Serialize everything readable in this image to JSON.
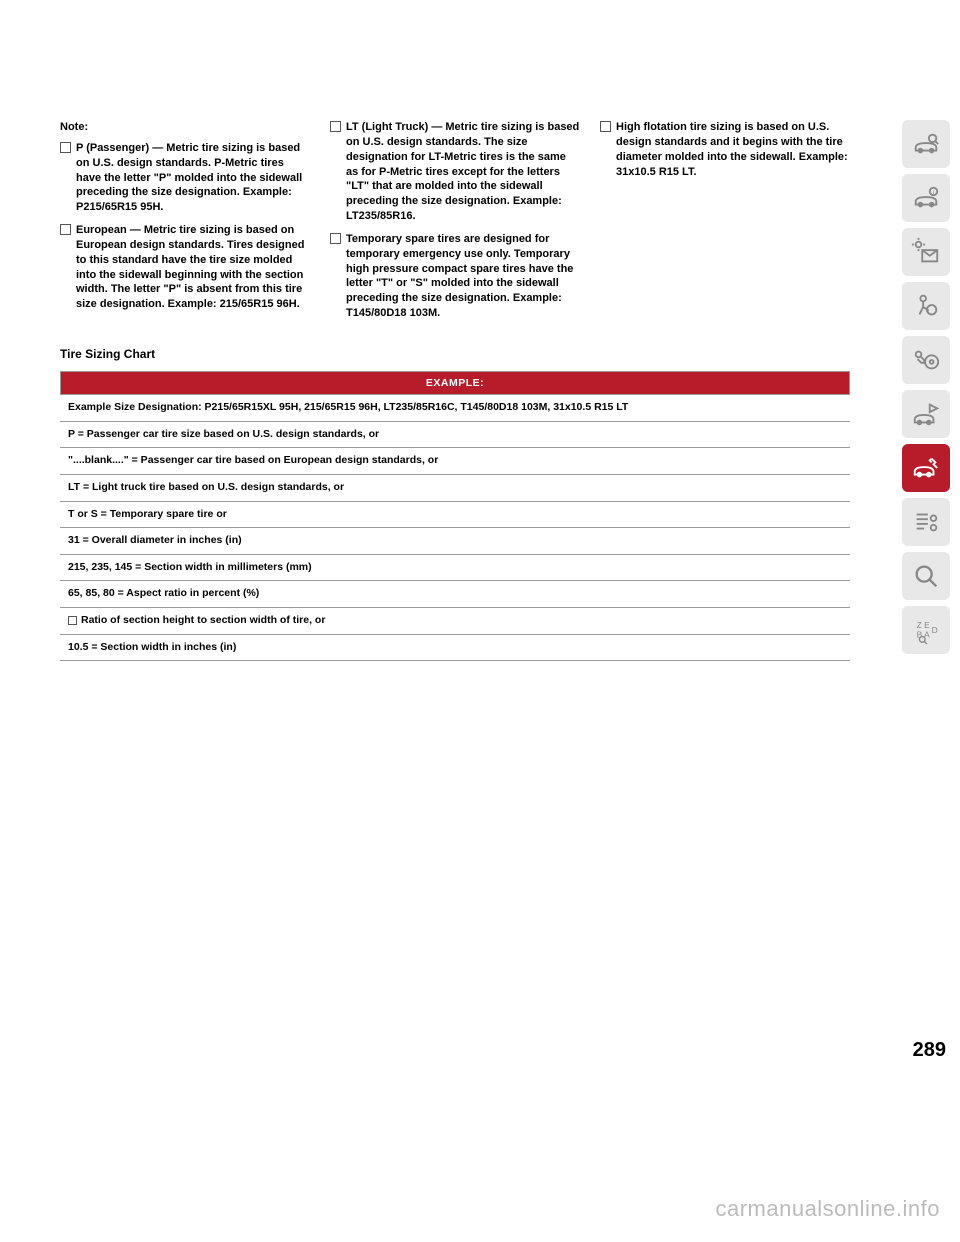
{
  "note_label": "Note:",
  "col1": {
    "b1": "P (Passenger) — Metric tire sizing is based on U.S. design standards. P-Metric tires have the letter \"P\" molded into the sidewall preceding the size designation. Example: P215/65R15 95H.",
    "b2": "European — Metric tire sizing is based on European design standards. Tires designed to this standard have the tire size molded into the sidewall beginning with the section width. The letter \"P\" is absent from this tire size designation. Example: 215/65R15 96H."
  },
  "col2": {
    "b1": "LT (Light Truck) — Metric tire sizing is based on U.S. design standards. The size designation for LT-Metric tires is the same as for P-Metric tires except for the letters \"LT\" that are molded into the sidewall preceding the size designation. Example: LT235/85R16.",
    "b2": "Temporary spare tires are designed for temporary emergency use only. Temporary high pressure compact spare tires have the letter \"T\" or \"S\" molded into the sidewall preceding the size designation. Example: T145/80D18 103M."
  },
  "col3": {
    "b1": "High flotation tire sizing is based on U.S. design standards and it begins with the tire diameter molded into the sidewall. Example: 31x10.5 R15 LT."
  },
  "section_title": "Tire Sizing Chart",
  "chart": {
    "header": "EXAMPLE:",
    "rows": [
      "Example Size Designation: P215/65R15XL 95H, 215/65R15 96H, LT235/85R16C, T145/80D18 103M, 31x10.5 R15 LT",
      "P = Passenger car tire size based on U.S. design standards, or",
      "\"....blank....\" = Passenger car tire based on European design standards, or",
      "LT = Light truck tire based on U.S. design standards, or",
      "T or S = Temporary spare tire or",
      "31 = Overall diameter in inches (in)",
      "215, 235, 145 = Section width in millimeters (mm)",
      "65, 85, 80 = Aspect ratio in percent (%)",
      "Ratio of section height to section width of tire, or",
      "10.5 = Section width in inches (in)"
    ],
    "bullet_row_index": 8
  },
  "page_number": "289",
  "watermark": "carmanualsonline.info",
  "icons": [
    {
      "name": "car-search-icon",
      "active": false
    },
    {
      "name": "car-info-icon",
      "active": false
    },
    {
      "name": "mail-sun-icon",
      "active": false
    },
    {
      "name": "airbag-icon",
      "active": false
    },
    {
      "name": "key-wheel-icon",
      "active": false
    },
    {
      "name": "car-flag-icon",
      "active": false
    },
    {
      "name": "car-wrench-icon",
      "active": true
    },
    {
      "name": "list-gear-icon",
      "active": false
    },
    {
      "name": "magnifier-icon",
      "active": false
    },
    {
      "name": "zebra-icon",
      "active": false
    }
  ],
  "colors": {
    "accent": "#b71c2b",
    "icon_bg": "#e8e8e8",
    "icon_fg": "#888888",
    "border": "#999999",
    "watermark": "#bbbbbb"
  }
}
